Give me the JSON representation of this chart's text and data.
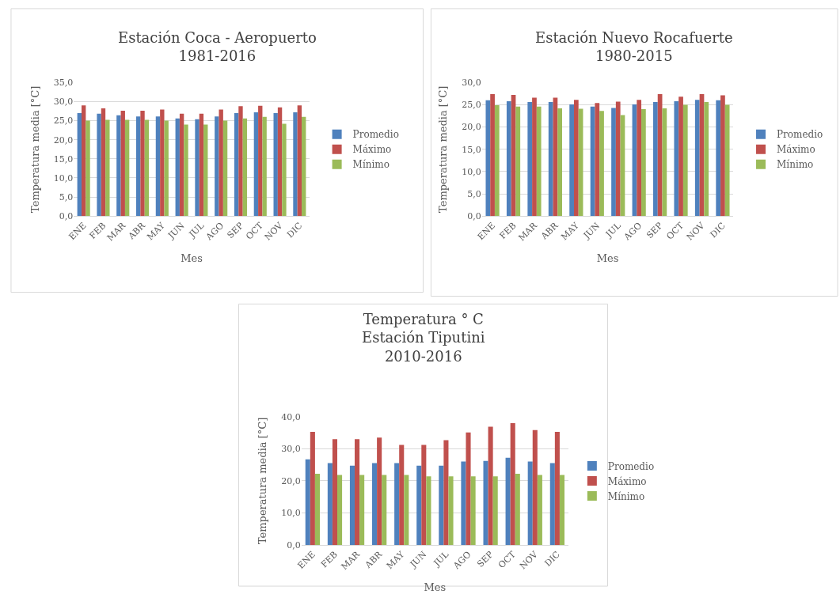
{
  "chart_data": [
    {
      "type": "bar",
      "title": "Estación Coca - Aeropuerto\n1981-2016",
      "xlabel": "Mes",
      "ylabel": "Temperatura media [°C]",
      "categories": [
        "ENE",
        "FEB",
        "MAR",
        "ABR",
        "MAY",
        "JUN",
        "JUL",
        "AGO",
        "SEP",
        "OCT",
        "NOV",
        "DIC"
      ],
      "ylim": [
        0,
        35
      ],
      "yticks": [
        {
          "value": 0,
          "label": "0,0"
        },
        {
          "value": 5,
          "label": "5,0"
        },
        {
          "value": 10,
          "label": "10,0"
        },
        {
          "value": 15,
          "label": "15,0"
        },
        {
          "value": 20,
          "label": "20,0"
        },
        {
          "value": 25,
          "label": "25,0"
        },
        {
          "value": 30,
          "label": "30,0"
        },
        {
          "value": 35,
          "label": "35,0"
        }
      ],
      "grid": "y",
      "legend": "right",
      "series": [
        {
          "name": "Promedio",
          "color": "#4f81bd",
          "values": [
            27.0,
            26.8,
            26.4,
            26.1,
            26.1,
            25.6,
            25.4,
            26.1,
            27.0,
            27.2,
            27.0,
            27.2
          ]
        },
        {
          "name": "Máximo",
          "color": "#c0504d",
          "values": [
            29.0,
            28.2,
            27.6,
            27.6,
            27.9,
            26.8,
            26.8,
            27.9,
            28.8,
            28.9,
            28.5,
            29.0
          ]
        },
        {
          "name": "Mínimo",
          "color": "#9bbb59",
          "values": [
            25.0,
            25.2,
            25.2,
            25.2,
            25.0,
            24.0,
            24.0,
            25.0,
            25.6,
            26.0,
            24.2,
            26.0
          ]
        }
      ]
    },
    {
      "type": "bar",
      "title": "Estación Nuevo Rocafuerte\n1980-2015",
      "xlabel": "Mes",
      "ylabel": "Temperatura media [°C]",
      "categories": [
        "ENE",
        "FEB",
        "MAR",
        "ABR",
        "MAY",
        "JUN",
        "JUL",
        "AGO",
        "SEP",
        "OCT",
        "NOV",
        "DIC"
      ],
      "ylim": [
        0,
        30
      ],
      "yticks": [
        {
          "value": 0,
          "label": "0,0"
        },
        {
          "value": 5,
          "label": "5,0"
        },
        {
          "value": 10,
          "label": "10,0"
        },
        {
          "value": 15,
          "label": "15,0"
        },
        {
          "value": 20,
          "label": "20,0"
        },
        {
          "value": 25,
          "label": "25,0"
        },
        {
          "value": 30,
          "label": "30,0"
        }
      ],
      "grid": "y",
      "legend": "right",
      "series": [
        {
          "name": "Promedio",
          "color": "#4f81bd",
          "values": [
            26.0,
            25.8,
            25.6,
            25.6,
            25.1,
            24.6,
            24.3,
            25.1,
            25.6,
            25.8,
            26.1,
            26.0
          ]
        },
        {
          "name": "Máximo",
          "color": "#c0504d",
          "values": [
            27.4,
            27.2,
            26.6,
            26.6,
            26.1,
            25.4,
            25.7,
            26.1,
            27.4,
            26.8,
            27.4,
            27.1
          ]
        },
        {
          "name": "Mínimo",
          "color": "#9bbb59",
          "values": [
            24.9,
            24.6,
            24.6,
            24.2,
            24.1,
            23.6,
            22.7,
            24.0,
            24.2,
            25.0,
            25.6,
            25.0
          ]
        }
      ]
    },
    {
      "type": "bar",
      "title": "Temperatura ° C\nEstación Tiputini\n2010-2016",
      "xlabel": "Mes",
      "ylabel": "Temperatura media [°C]",
      "categories": [
        "ENE",
        "FEB",
        "MAR",
        "ABR",
        "MAY",
        "JUN",
        "JUL",
        "AGO",
        "SEP",
        "OCT",
        "NOV",
        "DIC"
      ],
      "ylim": [
        0,
        40
      ],
      "yticks": [
        {
          "value": 0,
          "label": "0,0"
        },
        {
          "value": 10,
          "label": "10,0"
        },
        {
          "value": 20,
          "label": "20,0"
        },
        {
          "value": 30,
          "label": "30,0"
        },
        {
          "value": 40,
          "label": "40,0"
        }
      ],
      "grid": "y",
      "legend": "right",
      "series": [
        {
          "name": "Promedio",
          "color": "#4f81bd",
          "values": [
            26.7,
            25.5,
            24.7,
            25.5,
            25.5,
            24.7,
            24.7,
            26.0,
            26.2,
            27.2,
            26.0,
            25.5
          ]
        },
        {
          "name": "Máximo",
          "color": "#c0504d",
          "values": [
            35.3,
            33.0,
            33.0,
            33.5,
            31.2,
            31.2,
            32.7,
            35.1,
            36.9,
            38.0,
            35.8,
            35.3
          ]
        },
        {
          "name": "Mínimo",
          "color": "#9bbb59",
          "values": [
            22.2,
            21.8,
            21.8,
            21.8,
            21.8,
            21.4,
            21.4,
            21.4,
            21.4,
            22.2,
            21.8,
            21.8
          ]
        }
      ]
    }
  ]
}
